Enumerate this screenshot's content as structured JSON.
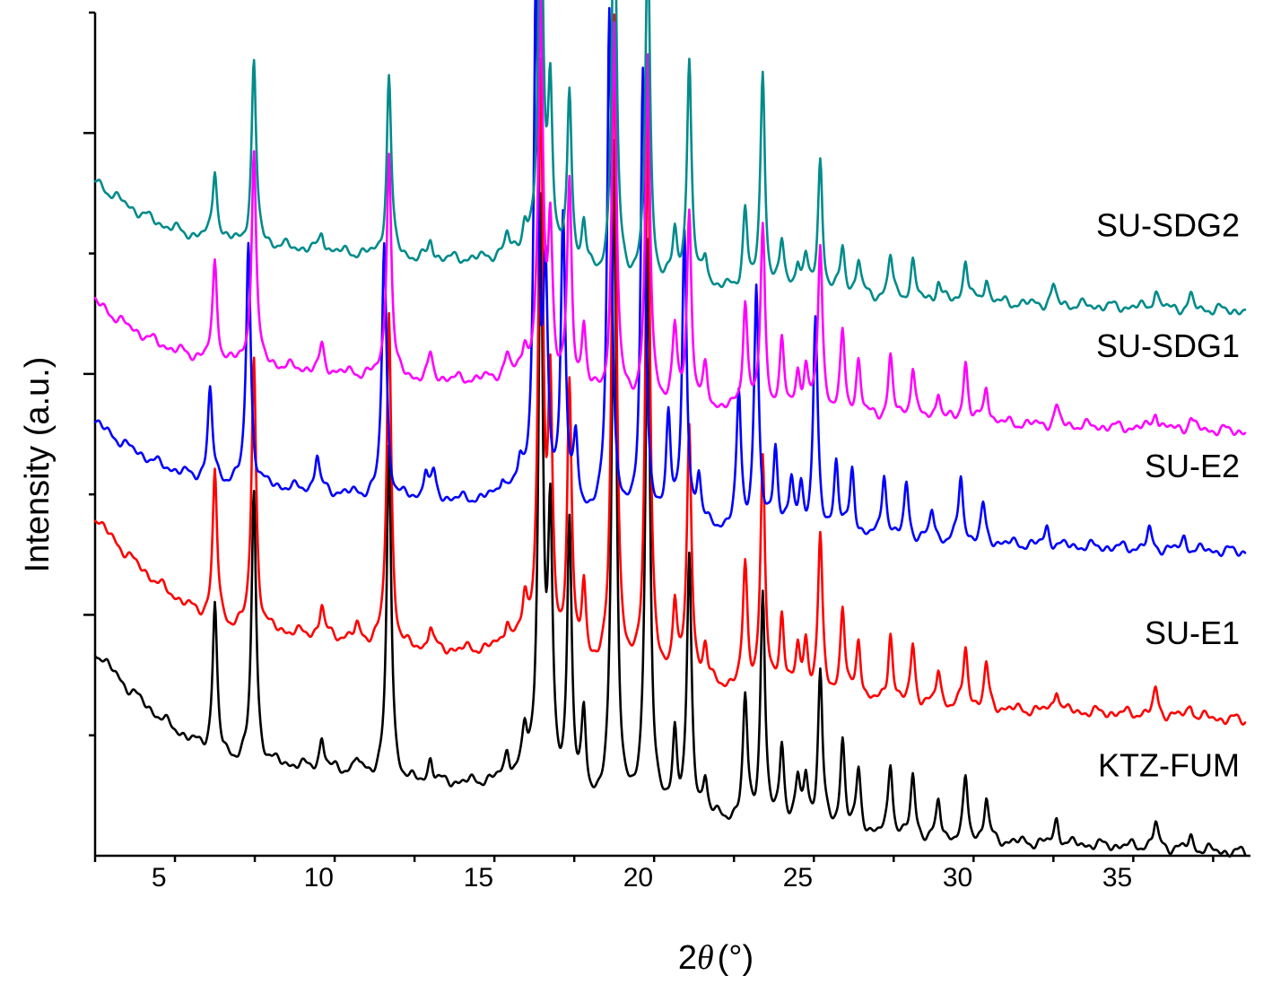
{
  "chart_data": {
    "type": "line",
    "xlabel_prefix": "2",
    "xlabel_symbol": "θ",
    "xlabel_unit": "(°)",
    "ylabel": "Intensity (a.u.)",
    "xlim": [
      3,
      39
    ],
    "x_ticks": [
      5,
      10,
      15,
      20,
      25,
      30,
      35
    ],
    "ylim": [
      0,
      140
    ],
    "grid": false,
    "series": [
      {
        "name": "KTZ-FUM",
        "color": "#000000",
        "offset": 0,
        "baseline": [
          [
            3,
            34
          ],
          [
            4,
            28
          ],
          [
            5,
            23
          ],
          [
            6,
            19
          ],
          [
            7,
            16
          ],
          [
            9,
            15
          ],
          [
            11,
            14
          ],
          [
            13,
            12
          ],
          [
            15,
            12
          ],
          [
            16.5,
            13
          ],
          [
            18,
            8
          ],
          [
            20,
            7
          ],
          [
            22,
            6
          ],
          [
            24,
            5
          ],
          [
            26,
            4
          ],
          [
            28,
            3
          ],
          [
            30,
            2.5
          ],
          [
            33,
            2
          ],
          [
            36,
            1.5
          ],
          [
            39,
            0.5
          ]
        ],
        "peaks": [
          [
            6.75,
            25
          ],
          [
            7.97,
            45
          ],
          [
            10.1,
            5
          ],
          [
            11.2,
            2
          ],
          [
            12.2,
            55
          ],
          [
            13.5,
            4
          ],
          [
            15.9,
            4
          ],
          [
            16.45,
            6
          ],
          [
            16.95,
            95
          ],
          [
            17.25,
            42
          ],
          [
            17.85,
            46
          ],
          [
            18.3,
            14
          ],
          [
            19.25,
            110
          ],
          [
            20.3,
            95
          ],
          [
            21.15,
            13
          ],
          [
            21.6,
            42
          ],
          [
            22.1,
            6
          ],
          [
            23.35,
            20
          ],
          [
            23.9,
            38
          ],
          [
            24.5,
            13
          ],
          [
            25.0,
            7
          ],
          [
            25.25,
            8
          ],
          [
            25.7,
            26
          ],
          [
            26.4,
            15
          ],
          [
            26.9,
            10
          ],
          [
            27.9,
            12
          ],
          [
            28.6,
            10
          ],
          [
            29.4,
            6
          ],
          [
            30.25,
            10
          ],
          [
            30.9,
            7
          ],
          [
            33.1,
            4
          ],
          [
            36.2,
            4
          ],
          [
            37.3,
            2
          ]
        ]
      },
      {
        "name": "SU-E1",
        "color": "#ff0000",
        "offset": 22,
        "baseline": [
          [
            3,
            34
          ],
          [
            4,
            28
          ],
          [
            5,
            23
          ],
          [
            6,
            19
          ],
          [
            7,
            16
          ],
          [
            9,
            15
          ],
          [
            11,
            14
          ],
          [
            13,
            12
          ],
          [
            15,
            12
          ],
          [
            16.5,
            13
          ],
          [
            18,
            8
          ],
          [
            20,
            7
          ],
          [
            22,
            6
          ],
          [
            24,
            5
          ],
          [
            26,
            4
          ],
          [
            28,
            3
          ],
          [
            30,
            2.5
          ],
          [
            33,
            2
          ],
          [
            36,
            1.5
          ],
          [
            39,
            0.5
          ]
        ],
        "peaks": [
          [
            6.75,
            25
          ],
          [
            7.97,
            45
          ],
          [
            10.1,
            5
          ],
          [
            11.2,
            2
          ],
          [
            12.2,
            55
          ],
          [
            13.5,
            4
          ],
          [
            15.9,
            4
          ],
          [
            16.45,
            6
          ],
          [
            16.95,
            95
          ],
          [
            17.25,
            42
          ],
          [
            17.85,
            46
          ],
          [
            18.3,
            14
          ],
          [
            19.25,
            110
          ],
          [
            20.3,
            95
          ],
          [
            21.15,
            13
          ],
          [
            21.6,
            42
          ],
          [
            22.1,
            6
          ],
          [
            23.35,
            20
          ],
          [
            23.9,
            38
          ],
          [
            24.5,
            13
          ],
          [
            25.0,
            7
          ],
          [
            25.25,
            8
          ],
          [
            25.7,
            26
          ],
          [
            26.4,
            15
          ],
          [
            26.9,
            10
          ],
          [
            27.9,
            12
          ],
          [
            28.6,
            10
          ],
          [
            29.4,
            6
          ],
          [
            30.25,
            10
          ],
          [
            30.9,
            7
          ],
          [
            33.1,
            4
          ],
          [
            36.2,
            4
          ],
          [
            37.3,
            2
          ]
        ]
      },
      {
        "name": "SU-E2",
        "color": "#0000ff",
        "offset": 50,
        "baseline": [
          [
            3,
            22
          ],
          [
            4,
            18
          ],
          [
            5,
            15
          ],
          [
            6,
            13
          ],
          [
            7,
            12
          ],
          [
            9,
            11
          ],
          [
            11,
            10
          ],
          [
            13,
            9
          ],
          [
            15,
            9
          ],
          [
            16.5,
            10
          ],
          [
            18,
            6
          ],
          [
            20,
            5
          ],
          [
            22,
            4
          ],
          [
            24,
            3.5
          ],
          [
            26,
            3
          ],
          [
            28,
            2.5
          ],
          [
            30,
            2
          ],
          [
            33,
            1.5
          ],
          [
            36,
            1
          ],
          [
            39,
            0.5
          ]
        ],
        "peaks": [
          [
            6.6,
            15
          ],
          [
            7.8,
            40
          ],
          [
            9.95,
            6
          ],
          [
            12.05,
            42
          ],
          [
            13.35,
            5
          ],
          [
            13.6,
            4
          ],
          [
            15.75,
            3
          ],
          [
            16.3,
            4
          ],
          [
            16.8,
            85
          ],
          [
            17.1,
            35
          ],
          [
            17.65,
            48
          ],
          [
            18.05,
            12
          ],
          [
            19.1,
            85
          ],
          [
            20.15,
            75
          ],
          [
            20.95,
            18
          ],
          [
            21.45,
            48
          ],
          [
            21.9,
            8
          ],
          [
            23.15,
            22
          ],
          [
            23.7,
            40
          ],
          [
            24.3,
            14
          ],
          [
            24.8,
            8
          ],
          [
            25.1,
            7
          ],
          [
            25.55,
            35
          ],
          [
            26.2,
            12
          ],
          [
            26.7,
            11
          ],
          [
            27.7,
            11
          ],
          [
            28.4,
            9
          ],
          [
            29.2,
            5
          ],
          [
            30.1,
            11
          ],
          [
            30.8,
            6
          ],
          [
            32.8,
            3
          ],
          [
            36.0,
            3
          ],
          [
            37.1,
            2
          ]
        ]
      },
      {
        "name": "SU-SDG1",
        "color": "#ff00ff",
        "offset": 70,
        "baseline": [
          [
            3,
            22
          ],
          [
            4,
            18
          ],
          [
            5,
            15
          ],
          [
            6,
            13
          ],
          [
            7,
            12
          ],
          [
            9,
            11
          ],
          [
            11,
            10
          ],
          [
            13,
            9
          ],
          [
            15,
            9
          ],
          [
            16.5,
            10
          ],
          [
            18,
            6
          ],
          [
            20,
            5
          ],
          [
            22,
            4
          ],
          [
            24,
            3.5
          ],
          [
            26,
            3
          ],
          [
            28,
            2.5
          ],
          [
            30,
            2
          ],
          [
            33,
            1.5
          ],
          [
            36,
            1
          ],
          [
            39,
            0.5
          ]
        ],
        "peaks": [
          [
            6.75,
            16
          ],
          [
            7.97,
            36
          ],
          [
            10.1,
            4
          ],
          [
            12.2,
            38
          ],
          [
            13.5,
            4
          ],
          [
            15.9,
            3
          ],
          [
            16.45,
            4
          ],
          [
            16.95,
            62
          ],
          [
            17.25,
            25
          ],
          [
            17.85,
            34
          ],
          [
            18.3,
            11
          ],
          [
            19.25,
            62
          ],
          [
            20.3,
            57
          ],
          [
            21.15,
            12
          ],
          [
            21.6,
            32
          ],
          [
            22.1,
            6
          ],
          [
            23.35,
            18
          ],
          [
            23.9,
            30
          ],
          [
            24.5,
            11
          ],
          [
            25.0,
            6
          ],
          [
            25.25,
            7
          ],
          [
            25.7,
            28
          ],
          [
            26.4,
            13
          ],
          [
            26.9,
            9
          ],
          [
            27.9,
            10
          ],
          [
            28.6,
            9
          ],
          [
            29.4,
            5
          ],
          [
            30.25,
            10
          ],
          [
            30.9,
            6
          ],
          [
            33.1,
            3
          ],
          [
            36.2,
            3
          ],
          [
            37.3,
            2
          ]
        ]
      },
      {
        "name": "SU-SDG2",
        "color": "#008b8b",
        "offset": 90,
        "baseline": [
          [
            3,
            22
          ],
          [
            4,
            18
          ],
          [
            5,
            15
          ],
          [
            6,
            13
          ],
          [
            7,
            12
          ],
          [
            9,
            11
          ],
          [
            11,
            10
          ],
          [
            13,
            9
          ],
          [
            15,
            9
          ],
          [
            16.5,
            10
          ],
          [
            18,
            6
          ],
          [
            20,
            5
          ],
          [
            22,
            4
          ],
          [
            24,
            3.5
          ],
          [
            26,
            3
          ],
          [
            28,
            2.5
          ],
          [
            30,
            2
          ],
          [
            33,
            1.5
          ],
          [
            36,
            1
          ],
          [
            39,
            0.5
          ]
        ],
        "peaks": [
          [
            6.75,
            12
          ],
          [
            7.97,
            30
          ],
          [
            10.1,
            3
          ],
          [
            12.2,
            30
          ],
          [
            13.5,
            3
          ],
          [
            15.9,
            3
          ],
          [
            16.45,
            4
          ],
          [
            16.95,
            70
          ],
          [
            17.25,
            28
          ],
          [
            17.85,
            30
          ],
          [
            18.3,
            8
          ],
          [
            19.25,
            70
          ],
          [
            20.3,
            58
          ],
          [
            21.15,
            8
          ],
          [
            21.6,
            38
          ],
          [
            22.1,
            5
          ],
          [
            23.35,
            13
          ],
          [
            23.9,
            36
          ],
          [
            24.5,
            8
          ],
          [
            25.0,
            5
          ],
          [
            25.25,
            5
          ],
          [
            25.7,
            22
          ],
          [
            26.4,
            8
          ],
          [
            26.9,
            6
          ],
          [
            27.9,
            7
          ],
          [
            28.6,
            6
          ],
          [
            29.4,
            3
          ],
          [
            30.25,
            7
          ],
          [
            30.9,
            4
          ],
          [
            33.0,
            3
          ],
          [
            36.2,
            3
          ],
          [
            37.3,
            2
          ]
        ]
      }
    ]
  }
}
